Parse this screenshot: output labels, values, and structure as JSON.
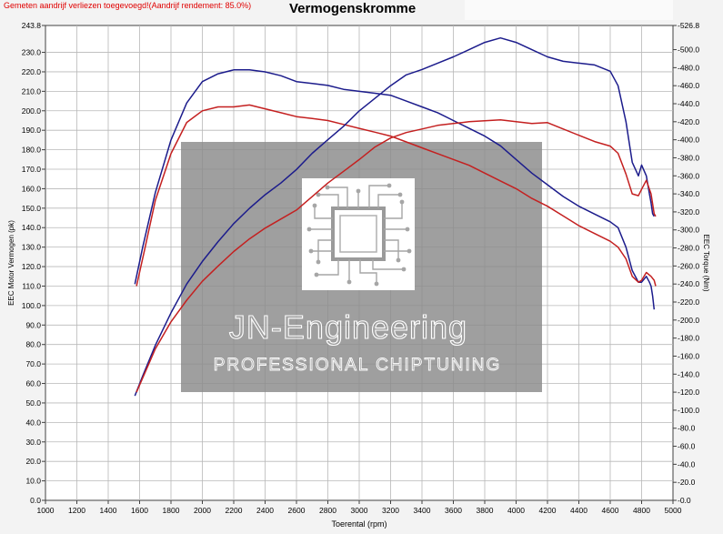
{
  "header": {
    "notice": "Gemeten aandrijf verliezen toegevoegd!(Aandrijf rendement: 85.0%)",
    "title": "Vermogenskromme"
  },
  "watermark": {
    "brand": "JN-Engineering",
    "tagline": "PROFESSIONAL CHIPTUNING",
    "logo_icon": "circuit-chip-icon"
  },
  "colors": {
    "original": "#1c1c8c",
    "tuned": "#c42020",
    "grid": "#b8b8b8",
    "plot_bg": "#ffffff",
    "watermark_box": "#8a8a8a"
  },
  "chart_data": {
    "type": "line",
    "title": "Vermogenskromme",
    "xlabel": "Toerental (rpm)",
    "ylabel": "EEC Motor Vermogen (pk)",
    "y2label": "EEC Torque (Nm)",
    "xlim": [
      1000,
      5000
    ],
    "ylim": [
      0,
      243.8
    ],
    "y2lim": [
      0,
      526.8
    ],
    "grid": true,
    "x_ticks": [
      1000,
      1200,
      1400,
      1600,
      1800,
      2000,
      2200,
      2400,
      2600,
      2800,
      3000,
      3200,
      3400,
      3600,
      3800,
      4000,
      4200,
      4400,
      4600,
      4800,
      5000
    ],
    "y_tick_labels": [
      "0.0",
      "10.0",
      "20.0",
      "30.0",
      "40.0",
      "50.0",
      "60.0",
      "70.0",
      "80.0",
      "90.0",
      "100.0",
      "110.0",
      "120.0",
      "130.0",
      "140.0",
      "150.0",
      "160.0",
      "170.0",
      "180.0",
      "190.0",
      "200.0",
      "210.0",
      "220.0",
      "230.0",
      "243.8"
    ],
    "y2_tick_labels": [
      "0.0",
      "20.0",
      "40.0",
      "60.0",
      "80.0",
      "100.0",
      "120.0",
      "140.0",
      "160.0",
      "180.0",
      "200.0",
      "220.0",
      "240.0",
      "260.0",
      "280.0",
      "300.0",
      "320.0",
      "340.0",
      "360.0",
      "380.0",
      "400.0",
      "420.0",
      "440.0",
      "460.0",
      "480.0",
      "500.0",
      "526.8"
    ],
    "series": [
      {
        "role": "power-blue",
        "axis": "left",
        "color": "#1c1c8c",
        "x": [
          1570,
          1620,
          1700,
          1800,
          1900,
          2000,
          2100,
          2200,
          2300,
          2400,
          2500,
          2600,
          2700,
          2800,
          2900,
          3000,
          3100,
          3200,
          3300,
          3400,
          3500,
          3600,
          3700,
          3800,
          3900,
          4000,
          4100,
          4200,
          4300,
          4400,
          4500,
          4600,
          4650,
          4700,
          4740,
          4780,
          4800,
          4830,
          4850,
          4860,
          4870,
          4880
        ],
        "y": [
          111,
          130,
          158,
          185,
          204,
          215,
          219,
          221,
          221,
          220,
          218,
          215,
          214,
          213,
          211,
          210,
          209,
          208,
          205,
          202,
          199,
          195,
          191,
          187,
          182,
          175,
          168,
          162,
          156,
          151,
          147,
          143,
          140,
          130,
          118,
          112,
          112,
          115,
          112,
          110,
          105,
          98
        ]
      },
      {
        "role": "power-red",
        "axis": "left",
        "color": "#c42020",
        "x": [
          1580,
          1630,
          1700,
          1800,
          1900,
          2000,
          2100,
          2200,
          2300,
          2400,
          2500,
          2600,
          2700,
          2800,
          2900,
          3000,
          3100,
          3200,
          3300,
          3400,
          3500,
          3600,
          3700,
          3800,
          3900,
          4000,
          4100,
          4200,
          4300,
          4400,
          4500,
          4600,
          4650,
          4700,
          4740,
          4780,
          4800,
          4830,
          4860,
          4880,
          4890
        ],
        "y": [
          110,
          128,
          154,
          178,
          194,
          200,
          202,
          202,
          203,
          201,
          199,
          197,
          196,
          195,
          193,
          191,
          189,
          187,
          184,
          181,
          178,
          175,
          172,
          168,
          164,
          160,
          155,
          151,
          146,
          141,
          137,
          133,
          130,
          124,
          115,
          112,
          113,
          117,
          115,
          113,
          110
        ]
      },
      {
        "role": "torque-blue",
        "axis": "right",
        "color": "#1c1c8c",
        "x": [
          1570,
          1620,
          1700,
          1800,
          1900,
          2000,
          2100,
          2200,
          2300,
          2400,
          2500,
          2600,
          2700,
          2800,
          2900,
          3000,
          3100,
          3200,
          3300,
          3400,
          3500,
          3600,
          3700,
          3800,
          3900,
          4000,
          4100,
          4200,
          4300,
          4400,
          4500,
          4600,
          4650,
          4700,
          4740,
          4780,
          4800,
          4830,
          4850,
          4860,
          4870,
          4880
        ],
        "y": [
          116,
          138,
          172,
          208,
          240,
          265,
          287,
          307,
          324,
          339,
          352,
          367,
          385,
          400,
          415,
          432,
          446,
          460,
          472,
          478,
          485,
          492,
          500,
          508,
          513,
          508,
          500,
          492,
          487,
          485,
          483,
          476,
          460,
          420,
          375,
          360,
          372,
          360,
          340,
          330,
          318,
          315
        ]
      },
      {
        "role": "torque-red",
        "axis": "right",
        "color": "#c42020",
        "x": [
          1580,
          1630,
          1700,
          1800,
          1900,
          2000,
          2100,
          2200,
          2300,
          2400,
          2500,
          2600,
          2700,
          2800,
          2900,
          3000,
          3100,
          3200,
          3300,
          3400,
          3500,
          3600,
          3700,
          3800,
          3900,
          4000,
          4100,
          4200,
          4300,
          4400,
          4500,
          4600,
          4650,
          4700,
          4740,
          4780,
          4800,
          4830,
          4860,
          4880,
          4890
        ],
        "y": [
          120,
          140,
          168,
          198,
          222,
          243,
          260,
          276,
          290,
          302,
          312,
          322,
          337,
          352,
          365,
          378,
          392,
          402,
          408,
          412,
          416,
          418,
          420,
          421,
          422,
          420,
          418,
          419,
          412,
          405,
          398,
          393,
          385,
          362,
          340,
          338,
          345,
          355,
          340,
          318,
          315
        ]
      }
    ]
  }
}
